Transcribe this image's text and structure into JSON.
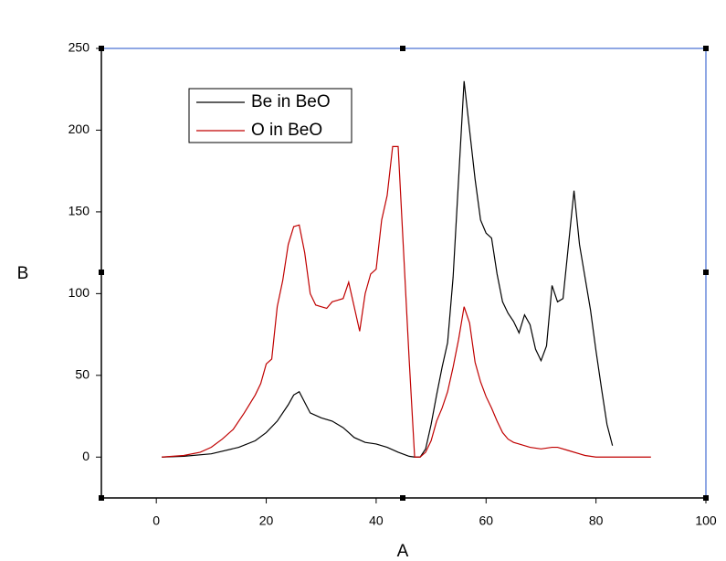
{
  "chart_data": {
    "type": "line",
    "x_label": "A",
    "y_label": "B",
    "xlim": [
      -10,
      100
    ],
    "xticks": [
      0,
      20,
      40,
      60,
      80,
      100
    ],
    "ylim": [
      -25,
      250
    ],
    "yticks": [
      0,
      50,
      100,
      150,
      200,
      250
    ],
    "series": [
      {
        "name": "Be in BeO",
        "color": "#000000",
        "x": [
          1,
          5,
          10,
          15,
          18,
          20,
          22,
          24,
          25,
          26,
          28,
          30,
          32,
          34,
          36,
          38,
          40,
          42,
          44,
          46,
          47,
          48,
          49,
          50,
          51,
          52,
          53,
          54,
          55,
          56,
          57,
          58,
          59,
          60,
          61,
          62,
          63,
          64,
          65,
          66,
          67,
          68,
          69,
          70,
          71,
          72,
          73,
          74,
          75,
          76,
          77,
          78,
          79,
          80,
          81,
          82,
          83
        ],
        "values": [
          0,
          0.5,
          2,
          6,
          10,
          15,
          22,
          32,
          38,
          40,
          27,
          24,
          22,
          18,
          12,
          9,
          8,
          6,
          3,
          0.5,
          0,
          0,
          5,
          20,
          38,
          55,
          70,
          110,
          170,
          230,
          200,
          170,
          145,
          137,
          134,
          112,
          95,
          88,
          83,
          76,
          87,
          81,
          66,
          59,
          68,
          105,
          95,
          97,
          130,
          163,
          130,
          110,
          90,
          65,
          42,
          20,
          7
        ]
      },
      {
        "name": "O in BeO",
        "color": "#c00000",
        "x": [
          1,
          5,
          8,
          10,
          12,
          14,
          16,
          18,
          19,
          20,
          21,
          22,
          23,
          24,
          25,
          26,
          27,
          28,
          29,
          30,
          31,
          32,
          33,
          34,
          35,
          36,
          37,
          38,
          39,
          40,
          41,
          42,
          43,
          44,
          45,
          46,
          47,
          48,
          49,
          50,
          51,
          52,
          53,
          54,
          55,
          56,
          57,
          58,
          59,
          60,
          61,
          62,
          63,
          64,
          65,
          66,
          68,
          70,
          72,
          73,
          75,
          78,
          80,
          85,
          90
        ],
        "values": [
          0,
          1,
          3,
          6,
          11,
          17,
          27,
          38,
          45,
          57,
          60,
          92,
          108,
          130,
          141,
          142,
          125,
          100,
          93,
          92,
          91,
          95,
          96,
          97,
          107,
          92,
          77,
          100,
          112,
          115,
          145,
          160,
          190,
          190,
          125,
          60,
          0,
          0,
          3,
          10,
          22,
          30,
          40,
          55,
          72,
          92,
          82,
          58,
          46,
          37,
          30,
          22,
          15,
          11,
          9,
          8,
          6,
          5,
          6,
          6,
          4,
          1,
          0,
          0,
          0
        ]
      }
    ]
  }
}
